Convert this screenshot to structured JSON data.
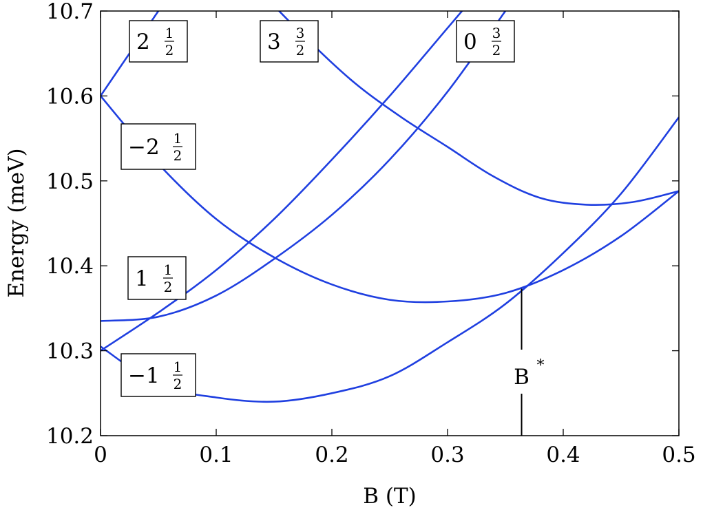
{
  "chart_data": {
    "type": "line",
    "xlabel": "B (T)",
    "ylabel": "Energy (meV)",
    "xlim": [
      0,
      0.5
    ],
    "ylim": [
      10.2,
      10.7
    ],
    "xticks": [
      "0",
      "0.1",
      "0.2",
      "0.3",
      "0.4",
      "0.5"
    ],
    "yticks": [
      "10.2",
      "10.3",
      "10.4",
      "10.5",
      "10.6",
      "10.7"
    ],
    "grid": false,
    "line_color": "#1f3fe0",
    "series": [
      {
        "labels": [
          "2",
          "1",
          "2"
        ],
        "x": [
          0,
          0.02,
          0.04,
          0.05,
          0.06
        ],
        "y": [
          10.6,
          10.64,
          10.68,
          10.7,
          10.72
        ]
      },
      {
        "labels": [
          "3",
          "3",
          "2"
        ],
        "x": [
          0.14,
          0.18,
          0.22,
          0.26,
          0.3,
          0.34,
          0.38,
          0.42,
          0.46,
          0.5
        ],
        "y": [
          10.72,
          10.665,
          10.615,
          10.575,
          10.54,
          10.505,
          10.48,
          10.472,
          10.475,
          10.488
        ]
      },
      {
        "labels": [
          "0",
          "3",
          "2"
        ],
        "x": [
          0,
          0.05,
          0.1,
          0.15,
          0.2,
          0.25,
          0.3,
          0.35
        ],
        "y": [
          10.3,
          10.345,
          10.395,
          10.455,
          10.525,
          10.6,
          10.68,
          10.76
        ]
      },
      {
        "labels": [
          "-2",
          "1",
          "2"
        ],
        "x": [
          0,
          0.05,
          0.1,
          0.15,
          0.2,
          0.25,
          0.3,
          0.35,
          0.4,
          0.45,
          0.5
        ],
        "y": [
          10.6,
          10.52,
          10.455,
          10.41,
          10.378,
          10.36,
          10.358,
          10.368,
          10.395,
          10.435,
          10.488
        ]
      },
      {
        "labels": [
          "1",
          "1",
          "2"
        ],
        "x": [
          0,
          0.05,
          0.1,
          0.15,
          0.2,
          0.25,
          0.3,
          0.35
        ],
        "y": [
          10.335,
          10.34,
          10.365,
          10.408,
          10.46,
          10.525,
          10.605,
          10.7
        ]
      },
      {
        "labels": [
          "-1",
          "1",
          "2"
        ],
        "x": [
          0,
          0.05,
          0.1,
          0.15,
          0.2,
          0.25,
          0.3,
          0.35,
          0.4,
          0.45,
          0.5
        ],
        "y": [
          10.305,
          10.26,
          10.245,
          10.24,
          10.25,
          10.27,
          10.31,
          10.355,
          10.415,
          10.485,
          10.575
        ]
      }
    ],
    "annotations": [
      {
        "text": "B",
        "superscript": "*",
        "x": 0.364,
        "y_from": 10.2,
        "y_to": 10.373
      }
    ]
  }
}
